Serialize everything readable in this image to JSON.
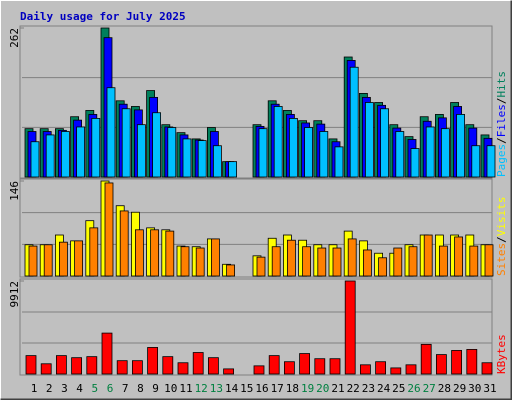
{
  "chart_data": {
    "type": "bar",
    "title": "Daily usage for July 2025",
    "categories": [
      "1",
      "2",
      "3",
      "4",
      "5",
      "6",
      "7",
      "8",
      "9",
      "10",
      "11",
      "12",
      "13",
      "14",
      "15",
      "16",
      "17",
      "18",
      "19",
      "20",
      "21",
      "22",
      "23",
      "24",
      "25",
      "26",
      "27",
      "28",
      "29",
      "30",
      "31"
    ],
    "x_label_colors": [
      "#000000",
      "#000000",
      "#000000",
      "#000000",
      "#008040",
      "#008040",
      "#000000",
      "#000000",
      "#000000",
      "#000000",
      "#000000",
      "#008040",
      "#008040",
      "#000000",
      "#000000",
      "#000000",
      "#000000",
      "#000000",
      "#008040",
      "#008040",
      "#000000",
      "#000000",
      "#000000",
      "#000000",
      "#000000",
      "#008040",
      "#008040",
      "#000000",
      "#000000",
      "#000000",
      "#000000"
    ],
    "legend_separator": "/",
    "panels": [
      {
        "ylim": [
          0,
          262
        ],
        "yticks": [
          262
        ],
        "series": [
          {
            "name": "Pages",
            "color": "#00c0ff",
            "values": [
              62,
              74,
              80,
              88,
              103,
              157,
              120,
              92,
              113,
              87,
              67,
              64,
              55,
              27,
              0,
              85,
              124,
              103,
              87,
              80,
              53,
              193,
              131,
              120,
              80,
              50,
              88,
              85,
              110,
              55,
              55
            ]
          },
          {
            "name": "Files",
            "color": "#0000ff",
            "values": [
              80,
              80,
              82,
              100,
              110,
              245,
              128,
              118,
              140,
              88,
              74,
              65,
              80,
              27,
              0,
              89,
              128,
              110,
              95,
              93,
              62,
              205,
              140,
              126,
              86,
              66,
              98,
              104,
              124,
              86,
              68
            ]
          },
          {
            "name": "Hits",
            "color": "#00805c",
            "values": [
              85,
              85,
              85,
              106,
              117,
              262,
              134,
              124,
              152,
              92,
              78,
              67,
              87,
              27,
              0,
              92,
              134,
              117,
              99,
              99,
              67,
              211,
              147,
              131,
              92,
              71,
              106,
              110,
              131,
              92,
              74
            ]
          }
        ]
      },
      {
        "ylim": [
          0,
          146
        ],
        "yticks": [
          146
        ],
        "series": [
          {
            "name": "Sites",
            "color": "#ff8000",
            "values": [
              46,
              48,
              52,
              54,
              74,
              143,
              100,
              71,
              71,
              69,
              45,
              43,
              57,
              17,
              0,
              29,
              45,
              55,
              45,
              43,
              43,
              57,
              40,
              28,
              43,
              45,
              63,
              46,
              60,
              46,
              48
            ]
          },
          {
            "name": "Visits",
            "color": "#ffff00",
            "values": [
              48,
              48,
              63,
              54,
              85,
              146,
              108,
              98,
              74,
              71,
              46,
              45,
              57,
              18,
              0,
              31,
              58,
              63,
              55,
              48,
              48,
              69,
              54,
              35,
              35,
              48,
              63,
              63,
              63,
              63,
              48
            ]
          }
        ]
      },
      {
        "ylim": [
          0,
          9912
        ],
        "yticks": [
          9912
        ],
        "series": [
          {
            "name": "KBytes",
            "color": "#ff0000",
            "values": [
              1960,
              1090,
              1960,
              1740,
              1850,
              4360,
              1420,
              1420,
              2830,
              1850,
              1200,
              2290,
              1740,
              545,
              0,
              870,
              1960,
              1310,
              2180,
              1630,
              1630,
              9912,
              980,
              1310,
              650,
              980,
              3160,
              2070,
              2510,
              2620,
              1200
            ]
          }
        ]
      }
    ]
  }
}
